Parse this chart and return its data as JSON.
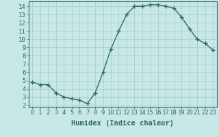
{
  "x": [
    0,
    1,
    2,
    3,
    4,
    5,
    6,
    7,
    8,
    9,
    10,
    11,
    12,
    13,
    14,
    15,
    16,
    17,
    18,
    19,
    20,
    21,
    22,
    23
  ],
  "y": [
    4.8,
    4.5,
    4.5,
    3.5,
    3.0,
    2.8,
    2.6,
    2.2,
    3.5,
    6.0,
    8.8,
    11.0,
    13.0,
    14.0,
    14.0,
    14.2,
    14.2,
    14.0,
    13.8,
    12.7,
    11.3,
    10.0,
    9.5,
    8.7
  ],
  "line_color": "#2d6b63",
  "bg_color": "#c8e8e8",
  "grid_color": "#a8cece",
  "xlabel": "Humidex (Indice chaleur)",
  "ylim": [
    1.8,
    14.6
  ],
  "xlim": [
    -0.5,
    23.5
  ],
  "yticks": [
    2,
    3,
    4,
    5,
    6,
    7,
    8,
    9,
    10,
    11,
    12,
    13,
    14
  ],
  "xticks": [
    0,
    1,
    2,
    3,
    4,
    5,
    6,
    7,
    8,
    9,
    10,
    11,
    12,
    13,
    14,
    15,
    16,
    17,
    18,
    19,
    20,
    21,
    22,
    23
  ],
  "xtick_labels": [
    "0",
    "1",
    "2",
    "3",
    "4",
    "5",
    "6",
    "7",
    "8",
    "9",
    "10",
    "11",
    "12",
    "13",
    "14",
    "15",
    "16",
    "17",
    "18",
    "19",
    "20",
    "21",
    "22",
    "23"
  ],
  "marker": "+",
  "marker_size": 4,
  "line_width": 1.0,
  "font_size": 6.5,
  "xlabel_font_size": 7.5
}
